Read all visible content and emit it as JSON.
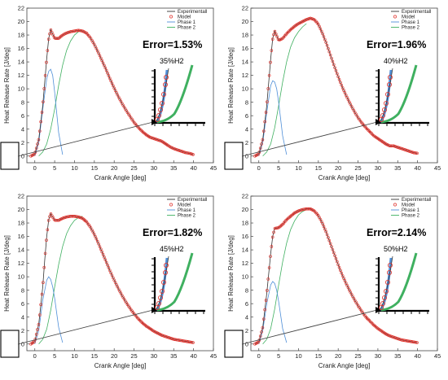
{
  "chart_data": [
    {
      "type": "line",
      "xlabel": "Crank Angle [deg]",
      "ylabel": "Heat Release Rate [J/deg]",
      "xlim": [
        -2,
        45
      ],
      "ylim": [
        -1,
        22
      ],
      "xticks": [
        0,
        5,
        10,
        15,
        20,
        25,
        30,
        35,
        40,
        45
      ],
      "yticks": [
        0,
        2,
        4,
        6,
        8,
        10,
        12,
        14,
        16,
        18,
        20,
        22
      ],
      "annotation_error": "Error=1.53%",
      "annotation_h2": "35%H2",
      "legend_position": "top-right",
      "series": [
        {
          "name": "Experimentall",
          "color": "#333333",
          "x": [
            -1,
            0,
            1,
            2,
            2.5,
            3,
            3.5,
            4,
            5,
            6,
            7,
            8,
            9,
            10,
            11,
            12,
            13,
            14,
            15,
            16,
            17,
            18,
            19,
            20,
            21,
            22,
            23,
            24,
            25,
            26,
            27,
            28,
            29,
            30,
            31,
            32,
            33,
            34,
            35,
            36,
            37,
            38,
            39,
            40
          ],
          "y": [
            0,
            0.3,
            2.5,
            7.5,
            11,
            14.5,
            17.5,
            18.8,
            17.5,
            17.5,
            18,
            18.3,
            18.5,
            18.6,
            18.7,
            18.6,
            18.3,
            17.6,
            16.6,
            15.4,
            14.1,
            12.8,
            11.4,
            10.1,
            8.9,
            7.8,
            6.8,
            5.9,
            5.0,
            4.3,
            3.7,
            3.2,
            2.8,
            2.6,
            2.4,
            2.2,
            1.8,
            1.4,
            1.1,
            0.9,
            0.7,
            0.5,
            0.4,
            0.2
          ]
        },
        {
          "name": "Model",
          "color": "#e0302a"
        },
        {
          "name": "Phase 1",
          "color": "#4f8fd8",
          "x": [
            0,
            1,
            2,
            3,
            3.5,
            4,
            4.5,
            5,
            6,
            7
          ],
          "y": [
            0,
            2,
            7,
            11.5,
            12.6,
            12.9,
            12,
            9.5,
            3.5,
            0.2
          ]
        },
        {
          "name": "Phase 2",
          "color": "#3fb060",
          "x": [
            1,
            2,
            3,
            4,
            5,
            6,
            7,
            8,
            9,
            10,
            11,
            12
          ],
          "y": [
            0,
            0.6,
            1.8,
            4,
            7,
            10.5,
            13.5,
            15.7,
            17.1,
            18.0,
            18.5,
            18.7
          ]
        }
      ]
    },
    {
      "type": "line",
      "xlabel": "Crank Angle [deg]",
      "ylabel": "Heat Release Rate [J/deg]",
      "xlim": [
        -2,
        45
      ],
      "ylim": [
        -1,
        22
      ],
      "xticks": [
        0,
        5,
        10,
        15,
        20,
        25,
        30,
        35,
        40,
        45
      ],
      "yticks": [
        0,
        2,
        4,
        6,
        8,
        10,
        12,
        14,
        16,
        18,
        20,
        22
      ],
      "annotation_error": "Error=1.96%",
      "annotation_h2": "40%H2",
      "legend_position": "top-right",
      "series": [
        {
          "name": "Experimentall",
          "color": "#333333",
          "x": [
            -1,
            0,
            1,
            2,
            2.5,
            3,
            3.5,
            4,
            5,
            6,
            7,
            8,
            9,
            10,
            11,
            12,
            13,
            14,
            15,
            16,
            17,
            18,
            19,
            20,
            21,
            22,
            23,
            24,
            25,
            26,
            27,
            28,
            29,
            30,
            31,
            32,
            33,
            34,
            35,
            36,
            37,
            38,
            39,
            40
          ],
          "y": [
            0,
            0.3,
            2.5,
            7.5,
            11,
            14.5,
            17.5,
            18.6,
            17.2,
            17.5,
            18.2,
            18.8,
            19.3,
            19.7,
            20.0,
            20.3,
            20.5,
            20.3,
            19.6,
            18.3,
            16.8,
            15.1,
            13.4,
            11.8,
            10.3,
            9.0,
            7.8,
            6.7,
            5.7,
            4.9,
            4.2,
            3.6,
            3.0,
            2.6,
            2.2,
            1.8,
            1.5,
            1.5,
            1.3,
            1.1,
            0.9,
            0.7,
            0.5,
            0.4
          ]
        },
        {
          "name": "Model",
          "color": "#e0302a"
        },
        {
          "name": "Phase 1",
          "color": "#4f8fd8",
          "x": [
            0,
            1,
            2,
            3,
            3.5,
            4,
            4.5,
            5,
            6,
            7
          ],
          "y": [
            0,
            2,
            6.5,
            10.5,
            11.2,
            11.0,
            10,
            8,
            3,
            0.2
          ]
        },
        {
          "name": "Phase 2",
          "color": "#3fb060",
          "x": [
            1,
            2,
            3,
            4,
            5,
            6,
            7,
            8,
            9,
            10,
            11,
            12
          ],
          "y": [
            0,
            0.6,
            1.8,
            4.2,
            7.5,
            11,
            14,
            16.2,
            17.6,
            18.5,
            19.2,
            19.7
          ]
        }
      ]
    },
    {
      "type": "line",
      "xlabel": "Crank Angle [deg]",
      "ylabel": "Heat Release Rate [J/deg]",
      "xlim": [
        -2,
        45
      ],
      "ylim": [
        -1,
        22
      ],
      "xticks": [
        0,
        5,
        10,
        15,
        20,
        25,
        30,
        35,
        40,
        45
      ],
      "yticks": [
        0,
        2,
        4,
        6,
        8,
        10,
        12,
        14,
        16,
        18,
        20,
        22
      ],
      "annotation_error": "Error=1.82%",
      "annotation_h2": "45%H2",
      "legend_position": "top-right",
      "series": [
        {
          "name": "Experimentall",
          "color": "#333333",
          "x": [
            -1,
            0,
            1,
            2,
            2.5,
            3,
            3.5,
            4,
            5,
            6,
            7,
            8,
            9,
            10,
            11,
            12,
            13,
            14,
            15,
            16,
            17,
            18,
            19,
            20,
            21,
            22,
            23,
            24,
            25,
            26,
            27,
            28,
            29,
            30,
            31,
            32,
            33,
            34,
            35,
            36,
            37,
            38,
            39,
            40
          ],
          "y": [
            0,
            0.4,
            3,
            8.5,
            12.5,
            16,
            18.5,
            19.4,
            18.4,
            18.4,
            18.7,
            18.9,
            19.0,
            19.0,
            18.9,
            18.7,
            18.2,
            17.4,
            16.3,
            15.0,
            13.6,
            12.2,
            10.8,
            9.5,
            8.3,
            7.2,
            6.2,
            5.3,
            4.5,
            3.8,
            3.2,
            2.7,
            2.3,
            1.9,
            1.6,
            1.3,
            1.1,
            0.9,
            0.7,
            0.6,
            0.5,
            0.4,
            0.3,
            0.2
          ]
        },
        {
          "name": "Model",
          "color": "#e0302a"
        },
        {
          "name": "Phase 1",
          "color": "#4f8fd8",
          "x": [
            0,
            1,
            2,
            3,
            3.5,
            4,
            4.5,
            5,
            6,
            7
          ],
          "y": [
            0,
            2,
            6.5,
            9.5,
            10.0,
            9.6,
            8.5,
            6.8,
            2.5,
            0.2
          ]
        },
        {
          "name": "Phase 2",
          "color": "#3fb060",
          "x": [
            1,
            2,
            3,
            4,
            5,
            6,
            7,
            8,
            9,
            10,
            11,
            12
          ],
          "y": [
            0,
            0.7,
            2.2,
            5,
            8.5,
            11.8,
            14.5,
            16.4,
            17.6,
            18.4,
            18.8,
            19.0
          ]
        }
      ]
    },
    {
      "type": "line",
      "xlabel": "Crank Angle [deg]",
      "ylabel": "Heat Release Rate [J/deg]",
      "xlim": [
        -2,
        45
      ],
      "ylim": [
        -1,
        22
      ],
      "xticks": [
        0,
        5,
        10,
        15,
        20,
        25,
        30,
        35,
        40,
        45
      ],
      "yticks": [
        0,
        2,
        4,
        6,
        8,
        10,
        12,
        14,
        16,
        18,
        20,
        22
      ],
      "annotation_error": "Error=2.14%",
      "annotation_h2": "50%H2",
      "legend_position": "top-right",
      "series": [
        {
          "name": "Experimentall",
          "color": "#333333",
          "x": [
            -1,
            0,
            1,
            2,
            2.5,
            3,
            3.5,
            4,
            5,
            6,
            7,
            8,
            9,
            10,
            11,
            12,
            13,
            14,
            15,
            16,
            17,
            18,
            19,
            20,
            21,
            22,
            23,
            24,
            25,
            26,
            27,
            28,
            29,
            30,
            31,
            32,
            33,
            34,
            35,
            36,
            37,
            38,
            39,
            40
          ],
          "y": [
            0,
            0.3,
            2.5,
            7.5,
            10.5,
            13.5,
            16,
            17.2,
            17.3,
            17.8,
            18.5,
            19.0,
            19.5,
            19.8,
            20.0,
            20.1,
            20.1,
            19.8,
            19.1,
            18.0,
            16.6,
            15.0,
            13.4,
            11.8,
            10.3,
            9.0,
            7.8,
            6.7,
            5.7,
            4.8,
            4.0,
            3.4,
            2.8,
            2.3,
            1.9,
            1.5,
            1.2,
            1.0,
            0.8,
            0.6,
            0.5,
            0.4,
            0.3,
            0.2
          ]
        },
        {
          "name": "Model",
          "color": "#e0302a"
        },
        {
          "name": "Phase 1",
          "color": "#4f8fd8",
          "x": [
            0,
            1,
            2,
            3,
            3.5,
            4,
            4.5,
            5,
            6,
            7
          ],
          "y": [
            0,
            2,
            6,
            8.8,
            9.3,
            9.0,
            8,
            6.3,
            2.3,
            0.2
          ]
        },
        {
          "name": "Phase 2",
          "color": "#3fb060",
          "x": [
            1,
            2,
            3,
            4,
            5,
            6,
            7,
            8,
            9,
            10,
            11,
            12
          ],
          "y": [
            0,
            0.7,
            2.3,
            5.2,
            8.8,
            12.2,
            15,
            17,
            18.3,
            19.2,
            19.7,
            20.0
          ]
        }
      ]
    }
  ]
}
